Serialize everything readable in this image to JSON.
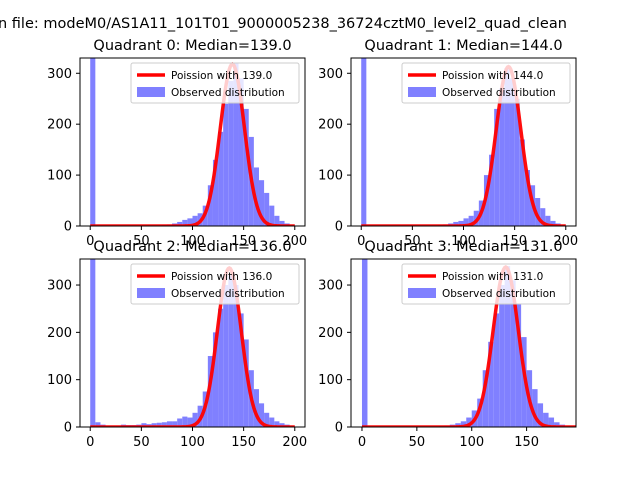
{
  "suptitle": "n file: modeM0/AS1A11_101T01_9000005238_36724cztM0_level2_quad_clean",
  "colors": {
    "hist": "#8080ff",
    "poisson": "#ff0000",
    "axis": "#000000"
  },
  "chart_data": [
    {
      "type": "bar",
      "title": "Quadrant 0: Median=139.0",
      "xlim": [
        -10,
        210
      ],
      "ylim": [
        0,
        330
      ],
      "xticks": [
        0,
        50,
        100,
        150,
        200
      ],
      "yticks": [
        0,
        100,
        200,
        300
      ],
      "legend": {
        "placement": "top-right",
        "entries": [
          "Poission with 139.0",
          "Observed distribution"
        ]
      },
      "median": 139.0,
      "poisson_peak": 318,
      "bin_width": 5,
      "bin_starts": [
        0,
        5,
        10,
        15,
        20,
        25,
        30,
        35,
        40,
        45,
        50,
        55,
        60,
        65,
        70,
        75,
        80,
        85,
        90,
        95,
        100,
        105,
        110,
        115,
        120,
        125,
        130,
        135,
        140,
        145,
        150,
        155,
        160,
        165,
        170,
        175,
        180,
        185,
        190,
        195
      ],
      "values": [
        330,
        1,
        1,
        1,
        1,
        1,
        1,
        1,
        1,
        1,
        1,
        1,
        1,
        1,
        2,
        3,
        5,
        8,
        12,
        15,
        20,
        25,
        40,
        80,
        130,
        185,
        240,
        285,
        320,
        290,
        230,
        175,
        115,
        90,
        65,
        40,
        20,
        10,
        5,
        2
      ]
    },
    {
      "type": "bar",
      "title": "Quadrant 1: Median=144.0",
      "xlim": [
        -10,
        210
      ],
      "ylim": [
        0,
        330
      ],
      "xticks": [
        0,
        50,
        100,
        150,
        200
      ],
      "yticks": [
        0,
        100,
        200,
        300
      ],
      "legend": {
        "placement": "top-right",
        "entries": [
          "Poission with 144.0",
          "Observed distribution"
        ]
      },
      "median": 144.0,
      "poisson_peak": 313,
      "bin_width": 5,
      "bin_starts": [
        0,
        5,
        10,
        15,
        20,
        25,
        30,
        35,
        40,
        45,
        50,
        55,
        60,
        65,
        70,
        75,
        80,
        85,
        90,
        95,
        100,
        105,
        110,
        115,
        120,
        125,
        130,
        135,
        140,
        145,
        150,
        155,
        160,
        165,
        170,
        175,
        180,
        185,
        190,
        195
      ],
      "values": [
        330,
        1,
        1,
        1,
        1,
        1,
        1,
        1,
        1,
        1,
        1,
        1,
        1,
        1,
        1,
        2,
        3,
        5,
        8,
        10,
        15,
        20,
        30,
        50,
        100,
        140,
        230,
        270,
        310,
        290,
        250,
        170,
        110,
        80,
        55,
        35,
        20,
        10,
        5,
        2
      ]
    },
    {
      "type": "bar",
      "title": "Quadrant 2: Median=136.0",
      "xlim": [
        -10,
        210
      ],
      "ylim": [
        0,
        355
      ],
      "xticks": [
        0,
        50,
        100,
        150,
        200
      ],
      "yticks": [
        0,
        100,
        200,
        300
      ],
      "legend": {
        "placement": "top-right",
        "entries": [
          "Poission with 136.0",
          "Observed distribution"
        ]
      },
      "median": 136.0,
      "poisson_peak": 336,
      "bin_width": 5,
      "bin_starts": [
        0,
        5,
        10,
        15,
        20,
        25,
        30,
        35,
        40,
        45,
        50,
        55,
        60,
        65,
        70,
        75,
        80,
        85,
        90,
        95,
        100,
        105,
        110,
        115,
        120,
        125,
        130,
        135,
        140,
        145,
        150,
        155,
        160,
        165,
        170,
        175,
        180,
        185,
        190,
        195
      ],
      "values": [
        355,
        10,
        5,
        3,
        3,
        3,
        5,
        4,
        4,
        5,
        8,
        6,
        8,
        9,
        10,
        12,
        12,
        18,
        22,
        20,
        30,
        45,
        75,
        150,
        200,
        250,
        300,
        320,
        300,
        240,
        185,
        120,
        80,
        50,
        30,
        20,
        12,
        8,
        5,
        2
      ]
    },
    {
      "type": "bar",
      "title": "Quadrant 3: Median=131.0",
      "xlim": [
        -10,
        195
      ],
      "ylim": [
        0,
        355
      ],
      "xticks": [
        0,
        50,
        100,
        150
      ],
      "yticks": [
        0,
        100,
        200,
        300
      ],
      "legend": {
        "placement": "top-right",
        "entries": [
          "Poission with 131.0",
          "Observed distribution"
        ]
      },
      "median": 131.0,
      "poisson_peak": 338,
      "bin_width": 5,
      "bin_starts": [
        0,
        5,
        10,
        15,
        20,
        25,
        30,
        35,
        40,
        45,
        50,
        55,
        60,
        65,
        70,
        75,
        80,
        85,
        90,
        95,
        100,
        105,
        110,
        115,
        120,
        125,
        130,
        135,
        140,
        145,
        150,
        155,
        160,
        165,
        170,
        175,
        180
      ],
      "values": [
        355,
        1,
        1,
        1,
        1,
        1,
        1,
        1,
        1,
        1,
        1,
        1,
        1,
        1,
        2,
        3,
        5,
        8,
        12,
        20,
        35,
        60,
        120,
        180,
        240,
        300,
        340,
        310,
        260,
        190,
        120,
        80,
        50,
        30,
        20,
        10,
        5
      ]
    }
  ]
}
